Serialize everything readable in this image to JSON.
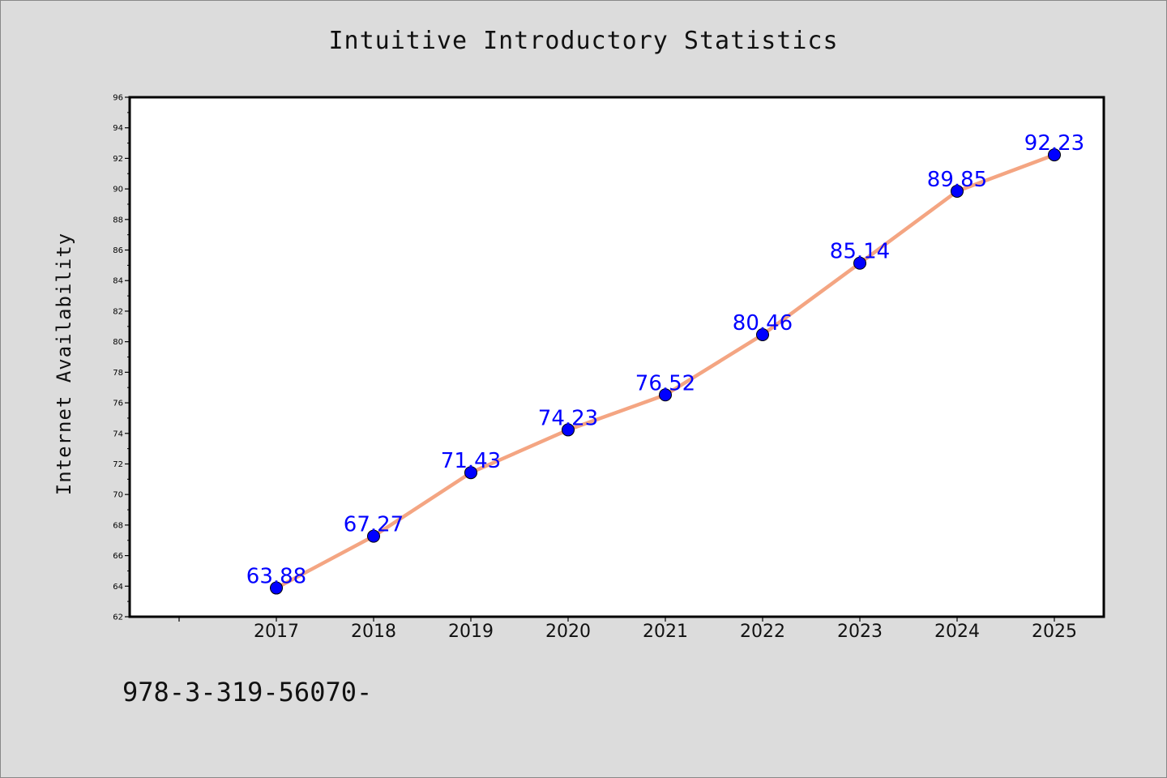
{
  "chart_data": {
    "type": "line",
    "title": "Intuitive Introductory Statistics",
    "xlabel": "",
    "ylabel": "Internet Availability",
    "categories": [
      "2017",
      "2018",
      "2019",
      "2020",
      "2021",
      "2022",
      "2023",
      "2024",
      "2025"
    ],
    "series": [
      {
        "values": [
          63.88,
          67.27,
          71.43,
          74.23,
          76.52,
          80.46,
          85.14,
          89.85,
          92.23
        ],
        "data_labels": [
          "63.88",
          "67.27",
          "71.43",
          "74.23",
          "76.52",
          "80.46",
          "85.14",
          "89.85",
          "92.23"
        ],
        "line_color": "#f4a582",
        "marker_color": "#0000ff"
      }
    ],
    "ylim": [
      62,
      96
    ],
    "yticks": [
      "62",
      "64",
      "66",
      "68",
      "70",
      "72",
      "74",
      "76",
      "78",
      "80",
      "82",
      "84",
      "86",
      "88",
      "90",
      "92",
      "94",
      "96"
    ],
    "grid": false,
    "label_color": "#0000ff"
  },
  "footer": {
    "code": "978-3-319-56070-"
  }
}
